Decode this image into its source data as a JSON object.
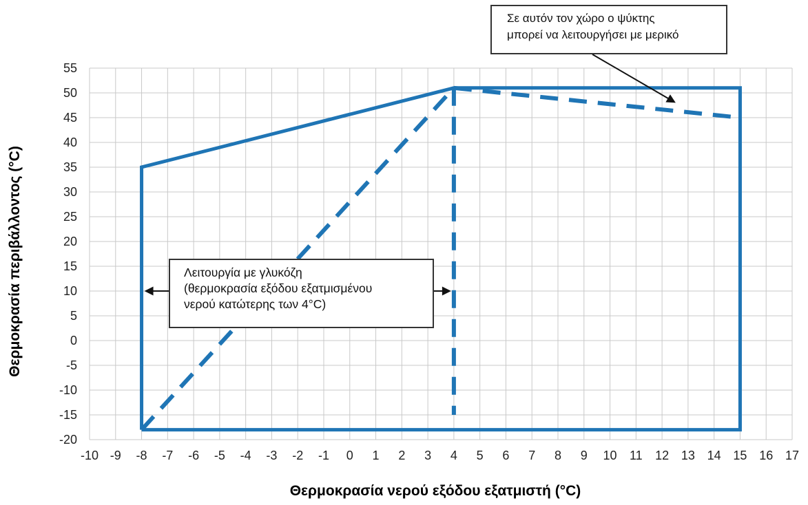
{
  "chart_data": {
    "type": "line",
    "xlabel": "Θερμοκρασία νερού εξόδου εξατμιστή (°C)",
    "ylabel": "Θερμοκρασία περιβάλλοντος (°C)",
    "xlim": [
      -10,
      17
    ],
    "ylim": [
      -20,
      55
    ],
    "x_ticks": [
      -10,
      -9,
      -8,
      -7,
      -6,
      -5,
      -4,
      -3,
      -2,
      -1,
      0,
      1,
      2,
      3,
      4,
      5,
      6,
      7,
      8,
      9,
      10,
      11,
      12,
      13,
      14,
      15,
      16,
      17
    ],
    "y_ticks": [
      55,
      50,
      45,
      40,
      35,
      30,
      25,
      20,
      15,
      10,
      5,
      0,
      -5,
      -10,
      -15,
      -20
    ],
    "grid": true,
    "colors": {
      "series": "#1f75b5",
      "grid": "#c8c8c8",
      "arrow": "#111111"
    },
    "series": [
      {
        "style": "solid",
        "x": [
          -8,
          -8,
          4,
          15,
          15,
          -8
        ],
        "y": [
          -18,
          35,
          51,
          51,
          -18,
          -18
        ]
      },
      {
        "style": "dashed",
        "x": [
          -8,
          4
        ],
        "y": [
          -18,
          51
        ]
      },
      {
        "style": "dashed",
        "x": [
          4,
          4
        ],
        "y": [
          51,
          -15
        ]
      },
      {
        "style": "dashed",
        "x": [
          4,
          15
        ],
        "y": [
          51,
          45
        ]
      }
    ],
    "annotations": [
      {
        "id": "glucose",
        "lines": [
          "Λειτουργία με γλυκόζη",
          "(θερμοκρασία  εξόδου  εξατμισμένου",
          "νερού κατώτερης των 4°C)"
        ],
        "arrows": [
          {
            "x": -8,
            "y": 10
          },
          {
            "x": 4,
            "y": 10
          }
        ]
      },
      {
        "id": "partial",
        "lines": [
          "Σε  αυτόν  τον  χώρο  ο  ψύκτης",
          "μπορεί να λειτουργήσει με μερικό"
        ],
        "arrows": [
          {
            "x": 13,
            "y": 48
          }
        ]
      }
    ]
  }
}
